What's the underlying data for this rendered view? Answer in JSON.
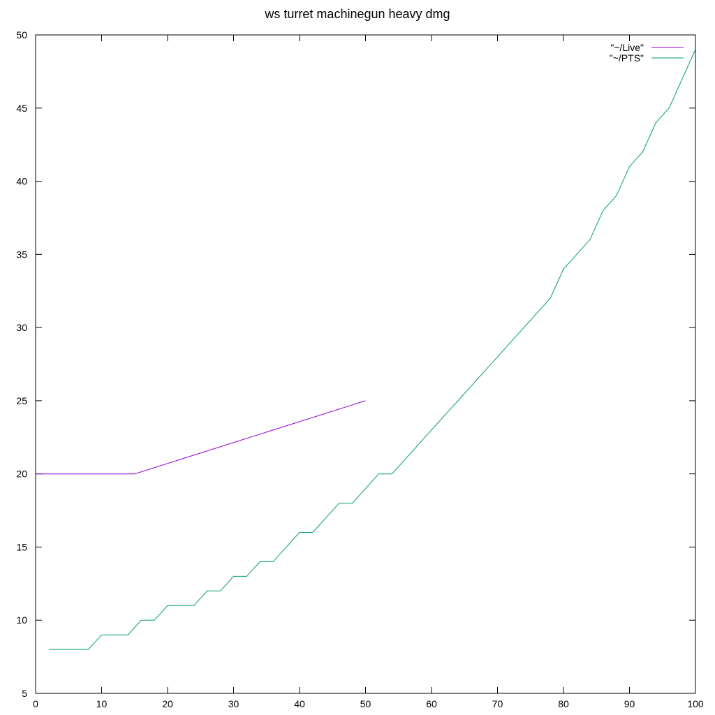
{
  "chart_data": {
    "type": "line",
    "title": "ws turret machinegun heavy dmg",
    "xlabel": "",
    "ylabel": "",
    "xlim": [
      0,
      100
    ],
    "ylim": [
      5,
      50
    ],
    "xticks": [
      0,
      10,
      20,
      30,
      40,
      50,
      60,
      70,
      80,
      90,
      100
    ],
    "yticks": [
      5,
      10,
      15,
      20,
      25,
      30,
      35,
      40,
      45,
      50
    ],
    "grid": false,
    "legend_position": "top-right",
    "series": [
      {
        "name": "\"~/Live\"",
        "color": "#9400d3",
        "x": [
          0,
          15,
          50
        ],
        "y": [
          20,
          20,
          25
        ]
      },
      {
        "name": "\"~/PTS\"",
        "color": "#009e73",
        "x": [
          2,
          8,
          10,
          14,
          16,
          18,
          20,
          24,
          26,
          28,
          30,
          32,
          34,
          36,
          40,
          42,
          46,
          48,
          52,
          54,
          78,
          80,
          84,
          86,
          88,
          90,
          92,
          94,
          96,
          100
        ],
        "y": [
          8,
          8,
          9,
          9,
          10,
          10,
          11,
          11,
          12,
          12,
          13,
          13,
          14,
          14,
          16,
          16,
          18,
          18,
          20,
          20,
          32,
          34,
          36,
          38,
          39,
          41,
          42,
          44,
          45,
          49
        ]
      }
    ]
  }
}
